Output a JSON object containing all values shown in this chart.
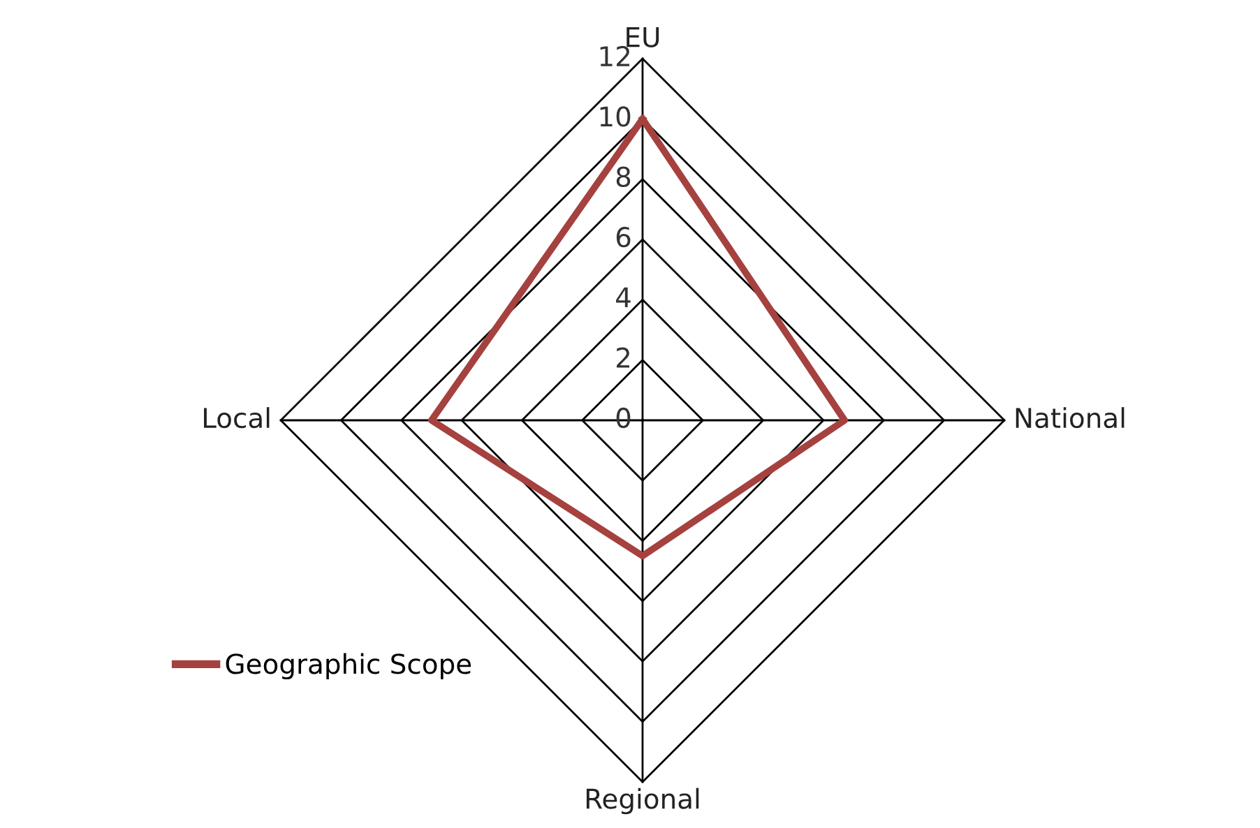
{
  "chart_data": {
    "type": "radar",
    "categories": [
      "EU",
      "National",
      "Regional",
      "Local"
    ],
    "ylim": [
      0,
      12
    ],
    "yticks": [
      0,
      2,
      4,
      6,
      8,
      10,
      12
    ],
    "grid": true,
    "legend": "bottom left",
    "marker": "none",
    "series": [
      {
        "name": "Geographic Scope",
        "color": "#a5413f",
        "values": [
          10,
          6.7,
          4.5,
          7
        ]
      }
    ]
  }
}
